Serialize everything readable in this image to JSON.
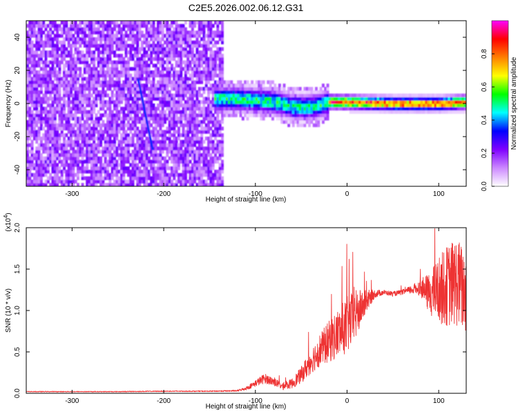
{
  "title": "C2E5.2026.002.06.12.G31",
  "chart_data": [
    {
      "type": "heatmap",
      "xlabel": "Height of straight line (km)",
      "ylabel": "Frequency (Hz)",
      "xlim": [
        -350,
        130
      ],
      "ylim": [
        -50,
        50
      ],
      "xticks": [
        -300,
        -200,
        -100,
        0,
        100
      ],
      "yticks": [
        -40,
        -20,
        0,
        20,
        40
      ],
      "colorbar": {
        "label": "Normalized spectral amplitude",
        "range": [
          0.0,
          1.0
        ],
        "ticks": [
          0.0,
          0.2,
          0.4,
          0.6,
          0.8
        ],
        "stops": [
          "#ffffff",
          "#cc88ff",
          "#7f00ff",
          "#0000ff",
          "#00ffff",
          "#00ff00",
          "#ffff00",
          "#ff8000",
          "#ff0000",
          "#ff00ff"
        ]
      },
      "noise_region_x": [
        -350,
        -135
      ],
      "signal_region_x": [
        -145,
        130
      ],
      "line_frequency_hz": [
        {
          "x": -145,
          "f": 3
        },
        {
          "x": -120,
          "f": 3
        },
        {
          "x": -100,
          "f": 2
        },
        {
          "x": -80,
          "f": 1
        },
        {
          "x": -60,
          "f": -2
        },
        {
          "x": -45,
          "f": -2
        },
        {
          "x": -30,
          "f": -1
        },
        {
          "x": -20,
          "f": 1
        },
        {
          "x": 0,
          "f": 1
        },
        {
          "x": 50,
          "f": 0
        },
        {
          "x": 100,
          "f": 0
        },
        {
          "x": 130,
          "f": 1
        }
      ],
      "streak": {
        "x": [
          -228,
          -212
        ],
        "f": [
          15,
          -28
        ]
      }
    },
    {
      "type": "line",
      "xlabel": "Height of straight line (km)",
      "ylabel": "SNR (10 * v/v)",
      "y_multiplier": "(x10^4)",
      "xlim": [
        -350,
        130
      ],
      "ylim": [
        0,
        2.0
      ],
      "xticks": [
        -300,
        -200,
        -100,
        0,
        100
      ],
      "yticks": [
        0.0,
        0.5,
        1.0,
        1.5,
        2.0
      ],
      "color": "#ee3333",
      "series": [
        {
          "name": "SNR",
          "x": [
            -350,
            -300,
            -250,
            -200,
            -150,
            -120,
            -110,
            -100,
            -90,
            -80,
            -70,
            -60,
            -50,
            -40,
            -30,
            -20,
            -10,
            0,
            10,
            20,
            30,
            40,
            50,
            60,
            70,
            80,
            90,
            100,
            110,
            120,
            130
          ],
          "values": [
            0.02,
            0.02,
            0.02,
            0.025,
            0.025,
            0.03,
            0.06,
            0.12,
            0.18,
            0.14,
            0.08,
            0.12,
            0.22,
            0.38,
            0.52,
            0.62,
            0.72,
            0.82,
            0.95,
            1.1,
            1.2,
            1.22,
            1.2,
            1.22,
            1.25,
            1.28,
            1.2,
            1.25,
            1.3,
            1.35,
            1.2
          ],
          "noise_amplitude": [
            0.005,
            0.005,
            0.005,
            0.006,
            0.006,
            0.01,
            0.02,
            0.04,
            0.06,
            0.05,
            0.04,
            0.06,
            0.1,
            0.15,
            0.2,
            0.25,
            0.3,
            0.35,
            0.3,
            0.15,
            0.05,
            0.03,
            0.03,
            0.03,
            0.05,
            0.1,
            0.25,
            0.4,
            0.5,
            0.55,
            0.5
          ]
        }
      ]
    }
  ]
}
